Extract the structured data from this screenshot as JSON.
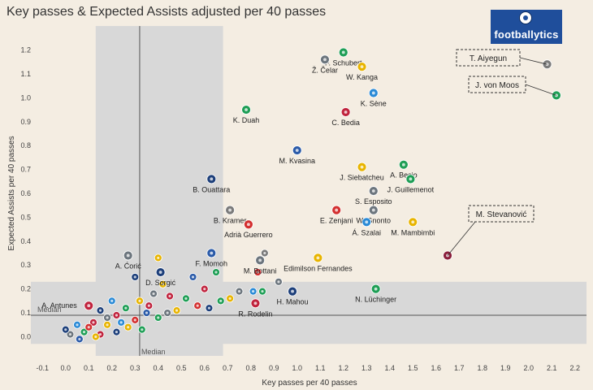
{
  "chart_data": {
    "type": "scatter",
    "title": "Key passes & Expected Assists adjusted per 40 passes",
    "xlabel": "Key passes per 40 passes",
    "ylabel": "Expected Assists per 40 passes",
    "xlim": [
      -0.15,
      2.25
    ],
    "ylim": [
      -0.08,
      1.28
    ],
    "x_ticks": [
      "-0.1",
      "0.0",
      "0.1",
      "0.2",
      "0.3",
      "0.4",
      "0.5",
      "0.6",
      "0.7",
      "0.8",
      "0.9",
      "1.0",
      "1.1",
      "1.2",
      "1.3",
      "1.4",
      "1.5",
      "1.6",
      "1.7",
      "1.8",
      "1.9",
      "2.0",
      "2.1",
      "2.2"
    ],
    "y_ticks": [
      "0.0",
      "0.1",
      "0.2",
      "0.3",
      "0.4",
      "0.5",
      "0.6",
      "0.7",
      "0.8",
      "0.9",
      "1.0",
      "1.1",
      "1.2"
    ],
    "median_x": 0.32,
    "median_y": 0.09,
    "median_label": "Median",
    "median_x_label": "Median",
    "x_median_band": [
      0.13,
      0.68
    ],
    "y_median_band": [
      -0.03,
      0.23
    ],
    "logo_text": "footballytics",
    "colors": {
      "background": "#f4ede2",
      "band": "#d8d8d8"
    },
    "points": [
      {
        "label": "F. Schubert",
        "x": 1.2,
        "y": 1.19,
        "color": "#1e9e55"
      },
      {
        "label": "Ž. Čelar",
        "x": 1.12,
        "y": 1.16,
        "color": "#6c757d"
      },
      {
        "label": "W. Kanga",
        "x": 1.28,
        "y": 1.13,
        "color": "#e8b400"
      },
      {
        "label": "K. Sène",
        "x": 1.33,
        "y": 1.02,
        "color": "#2a8ad6"
      },
      {
        "label": "C. Bedia",
        "x": 1.21,
        "y": 0.94,
        "color": "#c0233d"
      },
      {
        "label": "K. Duah",
        "x": 0.78,
        "y": 0.95,
        "color": "#1e9e55"
      },
      {
        "label": "T. Aiyegun",
        "x": 2.08,
        "y": 1.14,
        "color": "#7a7a7a"
      },
      {
        "label": "J. von Moos",
        "x": 2.12,
        "y": 1.01,
        "color": "#1e9e55"
      },
      {
        "label": "M. Kvasina",
        "x": 1.0,
        "y": 0.78,
        "color": "#2a5aa8"
      },
      {
        "label": "A. Besio",
        "x": 1.46,
        "y": 0.72,
        "color": "#1e9e55"
      },
      {
        "label": "J. Siebatcheu",
        "x": 1.28,
        "y": 0.71,
        "color": "#e8b400"
      },
      {
        "label": "J. Guillemenot",
        "x": 1.49,
        "y": 0.66,
        "color": "#1e9e55"
      },
      {
        "label": "B. Ouattara",
        "x": 0.63,
        "y": 0.66,
        "color": "#1d3f7a"
      },
      {
        "label": "S. Esposito",
        "x": 1.33,
        "y": 0.61,
        "color": "#6c757d"
      },
      {
        "label": "W. Gnonto",
        "x": 1.33,
        "y": 0.53,
        "color": "#6c757d"
      },
      {
        "label": "E. Zenjani",
        "x": 1.17,
        "y": 0.53,
        "color": "#d32f2f"
      },
      {
        "label": "B. Kramer",
        "x": 0.71,
        "y": 0.53,
        "color": "#7a7a7a"
      },
      {
        "label": "Adrià Guerrero",
        "x": 0.79,
        "y": 0.47,
        "color": "#d32f2f"
      },
      {
        "label": "M. Mambimbi",
        "x": 1.5,
        "y": 0.48,
        "color": "#e8b400"
      },
      {
        "label": "M. Stevanović",
        "x": 1.65,
        "y": 0.34,
        "color": "#8b1f3c"
      },
      {
        "label": "Á. Szalai",
        "x": 1.3,
        "y": 0.48,
        "color": "#2a8ad6"
      },
      {
        "label": "F. Momoh",
        "x": 0.63,
        "y": 0.35,
        "color": "#2a5aa8"
      },
      {
        "label": "Edimilson Fernandes",
        "x": 1.09,
        "y": 0.33,
        "color": "#e8b400"
      },
      {
        "label": "M. Bottani",
        "x": 0.84,
        "y": 0.32,
        "color": "#6c757d"
      },
      {
        "label": "A. Ćorić",
        "x": 0.27,
        "y": 0.34,
        "color": "#6c757d"
      },
      {
        "label": "D. Sorgić",
        "x": 0.41,
        "y": 0.27,
        "color": "#1d3f7a"
      },
      {
        "label": "N. Lüchinger",
        "x": 1.34,
        "y": 0.2,
        "color": "#1e9e55"
      },
      {
        "label": "H. Mahou",
        "x": 0.98,
        "y": 0.19,
        "color": "#1d3f7a"
      },
      {
        "label": "R. Rodelin",
        "x": 0.82,
        "y": 0.14,
        "color": "#c0233d"
      },
      {
        "label": "A. Antunes",
        "x": 0.1,
        "y": 0.13,
        "color": "#c0233d"
      }
    ],
    "unlabeled_points": [
      {
        "x": 0.4,
        "y": 0.33,
        "color": "#e8b400"
      },
      {
        "x": 0.65,
        "y": 0.27,
        "color": "#1e9e55"
      },
      {
        "x": 0.3,
        "y": 0.25,
        "color": "#1d3f7a"
      },
      {
        "x": 0.55,
        "y": 0.25,
        "color": "#2a5aa8"
      },
      {
        "x": 0.86,
        "y": 0.35,
        "color": "#7a7a7a"
      },
      {
        "x": 0.83,
        "y": 0.27,
        "color": "#d32f2f"
      },
      {
        "x": 0.6,
        "y": 0.2,
        "color": "#c0233d"
      },
      {
        "x": 0.75,
        "y": 0.19,
        "color": "#6c757d"
      },
      {
        "x": 0.81,
        "y": 0.19,
        "color": "#2a8ad6"
      },
      {
        "x": 0.92,
        "y": 0.23,
        "color": "#6c757d"
      },
      {
        "x": 0.85,
        "y": 0.19,
        "color": "#1e9e55"
      },
      {
        "x": 0.71,
        "y": 0.16,
        "color": "#e8b400"
      },
      {
        "x": 0.67,
        "y": 0.15,
        "color": "#1e9e55"
      },
      {
        "x": 0.42,
        "y": 0.22,
        "color": "#e8b400"
      },
      {
        "x": 0.2,
        "y": 0.15,
        "color": "#2a8ad6"
      },
      {
        "x": 0.32,
        "y": 0.15,
        "color": "#e8b400"
      },
      {
        "x": 0.38,
        "y": 0.18,
        "color": "#6c757d"
      },
      {
        "x": 0.45,
        "y": 0.17,
        "color": "#c0233d"
      },
      {
        "x": 0.52,
        "y": 0.16,
        "color": "#1e9e55"
      },
      {
        "x": 0.57,
        "y": 0.13,
        "color": "#d32f2f"
      },
      {
        "x": 0.62,
        "y": 0.12,
        "color": "#1d3f7a"
      },
      {
        "x": 0.48,
        "y": 0.11,
        "color": "#e8b400"
      },
      {
        "x": 0.26,
        "y": 0.12,
        "color": "#1e9e55"
      },
      {
        "x": 0.22,
        "y": 0.09,
        "color": "#c0233d"
      },
      {
        "x": 0.15,
        "y": 0.11,
        "color": "#1d3f7a"
      },
      {
        "x": 0.35,
        "y": 0.1,
        "color": "#2a5aa8"
      },
      {
        "x": 0.4,
        "y": 0.08,
        "color": "#1e9e55"
      },
      {
        "x": 0.44,
        "y": 0.1,
        "color": "#6c757d"
      },
      {
        "x": 0.3,
        "y": 0.07,
        "color": "#d32f2f"
      },
      {
        "x": 0.18,
        "y": 0.05,
        "color": "#e8b400"
      },
      {
        "x": 0.12,
        "y": 0.06,
        "color": "#c0233d"
      },
      {
        "x": 0.05,
        "y": 0.05,
        "color": "#2a8ad6"
      },
      {
        "x": 0.08,
        "y": 0.02,
        "color": "#1e9e55"
      },
      {
        "x": 0.02,
        "y": 0.01,
        "color": "#6c757d"
      },
      {
        "x": 0.15,
        "y": 0.01,
        "color": "#c0233d"
      },
      {
        "x": 0.22,
        "y": 0.02,
        "color": "#1d3f7a"
      },
      {
        "x": 0.27,
        "y": 0.04,
        "color": "#e8b400"
      },
      {
        "x": 0.1,
        "y": 0.04,
        "color": "#d32f2f"
      },
      {
        "x": 0.33,
        "y": 0.03,
        "color": "#1e9e55"
      },
      {
        "x": 0.06,
        "y": -0.01,
        "color": "#2a5aa8"
      },
      {
        "x": 0.18,
        "y": 0.08,
        "color": "#6c757d"
      },
      {
        "x": 0.24,
        "y": 0.06,
        "color": "#2a8ad6"
      },
      {
        "x": 0.36,
        "y": 0.13,
        "color": "#c0233d"
      },
      {
        "x": 0.13,
        "y": 0.0,
        "color": "#e8b400"
      },
      {
        "x": 0.0,
        "y": 0.03,
        "color": "#1d3f7a"
      }
    ]
  }
}
